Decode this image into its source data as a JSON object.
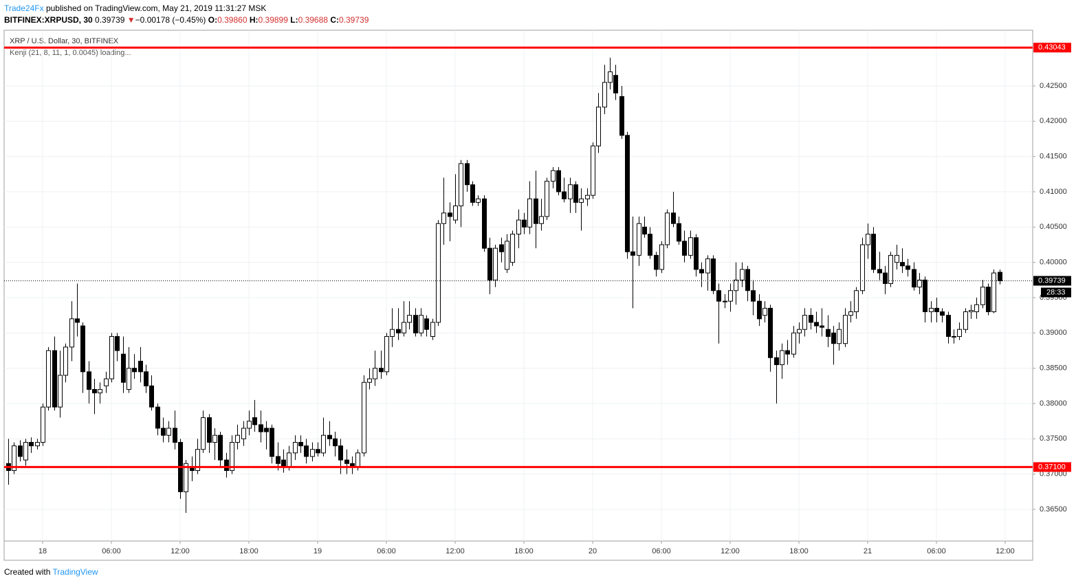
{
  "header": {
    "author": "Trade24Fx",
    "published": "published on TradingView.com, May 21, 2019 11:31:27 MSK",
    "symbol": "BITFINEX:XRPUSD, 30",
    "last": "0.39739",
    "arrow": "▼",
    "change": "−0.00178 (−0.45%)",
    "o_label": "O:",
    "o": "0.39860",
    "h_label": "H:",
    "h": "0.39899",
    "l_label": "L:",
    "l": "0.39688",
    "c_label": "C:",
    "c": "0.39739"
  },
  "footer": {
    "created": "Created with",
    "brand": "TradingView"
  },
  "chart_data": {
    "type": "candlestick",
    "title": "XRP / U.S. Dollar, 30, BITFINEX",
    "subtitle": "Kenji (21, 8, 11, 1, 0.0045) loading...",
    "up_color": "#ffffff",
    "down_color": "#000000",
    "grid": true,
    "ylim": [
      0.36052,
      0.43289
    ],
    "yticks": [
      {
        "value": 0.365,
        "label": "0.36500"
      },
      {
        "value": 0.37,
        "label": "0.37000"
      },
      {
        "value": 0.375,
        "label": "0.37500"
      },
      {
        "value": 0.38,
        "label": "0.38000"
      },
      {
        "value": 0.385,
        "label": "0.38500"
      },
      {
        "value": 0.39,
        "label": "0.39000"
      },
      {
        "value": 0.395,
        "label": "0.39500"
      },
      {
        "value": 0.4,
        "label": "0.40000"
      },
      {
        "value": 0.405,
        "label": "0.40500"
      },
      {
        "value": 0.41,
        "label": "0.41000"
      },
      {
        "value": 0.415,
        "label": "0.41500"
      },
      {
        "value": 0.42,
        "label": "0.42000"
      },
      {
        "value": 0.425,
        "label": "0.42500"
      }
    ],
    "xlim": [
      -0.72,
      178.8
    ],
    "xticks": [
      {
        "value": 6,
        "label": "18"
      },
      {
        "value": 18,
        "label": "06:00"
      },
      {
        "value": 30,
        "label": "12:00"
      },
      {
        "value": 42,
        "label": "18:00"
      },
      {
        "value": 54,
        "label": "19"
      },
      {
        "value": 66,
        "label": "06:00"
      },
      {
        "value": 78,
        "label": "12:00"
      },
      {
        "value": 90,
        "label": "18:00"
      },
      {
        "value": 102,
        "label": "20"
      },
      {
        "value": 114,
        "label": "06:00"
      },
      {
        "value": 126,
        "label": "12:00"
      },
      {
        "value": 138,
        "label": "18:00"
      },
      {
        "value": 150,
        "label": "21"
      },
      {
        "value": 162,
        "label": "06:00"
      },
      {
        "value": 174,
        "label": "12:00"
      }
    ],
    "levels": [
      {
        "value": 0.43043,
        "label": "0.43043",
        "color": "#ff0000"
      },
      {
        "value": 0.371,
        "label": "0.37100",
        "color": "#ff0000"
      }
    ],
    "last_price": {
      "value": 0.39739,
      "label": "0.39739",
      "countdown": "28:33"
    },
    "ohlc": [
      [
        0.3715,
        0.375,
        0.3685,
        0.3705
      ],
      [
        0.3705,
        0.3745,
        0.37,
        0.374
      ],
      [
        0.374,
        0.3748,
        0.3718,
        0.3725
      ],
      [
        0.372,
        0.375,
        0.3712,
        0.3745
      ],
      [
        0.3745,
        0.3752,
        0.373,
        0.374
      ],
      [
        0.374,
        0.375,
        0.3735,
        0.3745
      ],
      [
        0.3745,
        0.38,
        0.374,
        0.3795
      ],
      [
        0.3795,
        0.388,
        0.379,
        0.3875
      ],
      [
        0.3875,
        0.3895,
        0.379,
        0.3795
      ],
      [
        0.3795,
        0.3875,
        0.378,
        0.384
      ],
      [
        0.384,
        0.3885,
        0.383,
        0.388
      ],
      [
        0.388,
        0.3945,
        0.386,
        0.392
      ],
      [
        0.392,
        0.397,
        0.3895,
        0.3915
      ],
      [
        0.391,
        0.3915,
        0.3815,
        0.3845
      ],
      [
        0.3845,
        0.386,
        0.38,
        0.382
      ],
      [
        0.382,
        0.3835,
        0.3785,
        0.3815
      ],
      [
        0.3815,
        0.383,
        0.38,
        0.382
      ],
      [
        0.3825,
        0.3845,
        0.3815,
        0.3835
      ],
      [
        0.3835,
        0.39,
        0.383,
        0.3895
      ],
      [
        0.3895,
        0.39,
        0.386,
        0.3875
      ],
      [
        0.387,
        0.3895,
        0.3815,
        0.383
      ],
      [
        0.382,
        0.388,
        0.3815,
        0.385
      ],
      [
        0.385,
        0.387,
        0.3835,
        0.3845
      ],
      [
        0.386,
        0.388,
        0.383,
        0.3845
      ],
      [
        0.3845,
        0.3855,
        0.3815,
        0.3825
      ],
      [
        0.3825,
        0.384,
        0.379,
        0.3795
      ],
      [
        0.3795,
        0.38,
        0.3755,
        0.3765
      ],
      [
        0.3765,
        0.378,
        0.3745,
        0.3755
      ],
      [
        0.3755,
        0.3775,
        0.3745,
        0.3765
      ],
      [
        0.3765,
        0.379,
        0.3735,
        0.3745
      ],
      [
        0.3745,
        0.375,
        0.3665,
        0.3675
      ],
      [
        0.3675,
        0.372,
        0.3645,
        0.3715
      ],
      [
        0.371,
        0.3725,
        0.369,
        0.3705
      ],
      [
        0.3705,
        0.375,
        0.37,
        0.3735
      ],
      [
        0.3735,
        0.379,
        0.373,
        0.378
      ],
      [
        0.378,
        0.3785,
        0.373,
        0.3745
      ],
      [
        0.3745,
        0.3765,
        0.372,
        0.3755
      ],
      [
        0.3755,
        0.376,
        0.371,
        0.372
      ],
      [
        0.372,
        0.373,
        0.3695,
        0.3705
      ],
      [
        0.3705,
        0.3755,
        0.37,
        0.3745
      ],
      [
        0.3745,
        0.377,
        0.3735,
        0.3755
      ],
      [
        0.375,
        0.3775,
        0.374,
        0.3765
      ],
      [
        0.3765,
        0.379,
        0.3755,
        0.3775
      ],
      [
        0.378,
        0.3805,
        0.376,
        0.377
      ],
      [
        0.377,
        0.379,
        0.3745,
        0.376
      ],
      [
        0.3765,
        0.3775,
        0.3735,
        0.376
      ],
      [
        0.3765,
        0.377,
        0.3715,
        0.3725
      ],
      [
        0.3725,
        0.3745,
        0.3705,
        0.3715
      ],
      [
        0.372,
        0.3735,
        0.3702,
        0.371
      ],
      [
        0.371,
        0.374,
        0.3705,
        0.373
      ],
      [
        0.373,
        0.3755,
        0.372,
        0.3745
      ],
      [
        0.3745,
        0.3755,
        0.373,
        0.374
      ],
      [
        0.374,
        0.375,
        0.3715,
        0.3725
      ],
      [
        0.3725,
        0.3745,
        0.3718,
        0.3735
      ],
      [
        0.3735,
        0.3745,
        0.3725,
        0.373
      ],
      [
        0.373,
        0.378,
        0.3725,
        0.3755
      ],
      [
        0.3755,
        0.3775,
        0.374,
        0.375
      ],
      [
        0.375,
        0.376,
        0.3725,
        0.374
      ],
      [
        0.374,
        0.375,
        0.37,
        0.372
      ],
      [
        0.372,
        0.3735,
        0.37,
        0.3715
      ],
      [
        0.3715,
        0.3725,
        0.37,
        0.371
      ],
      [
        0.371,
        0.3735,
        0.3705,
        0.373
      ],
      [
        0.373,
        0.384,
        0.3725,
        0.383
      ],
      [
        0.383,
        0.385,
        0.382,
        0.3835
      ],
      [
        0.3835,
        0.3875,
        0.3825,
        0.385
      ],
      [
        0.385,
        0.3875,
        0.3835,
        0.3845
      ],
      [
        0.3845,
        0.39,
        0.384,
        0.3895
      ],
      [
        0.3895,
        0.3935,
        0.388,
        0.3905
      ],
      [
        0.3905,
        0.3935,
        0.389,
        0.39
      ],
      [
        0.39,
        0.3945,
        0.3895,
        0.3915
      ],
      [
        0.3915,
        0.3945,
        0.3905,
        0.3925
      ],
      [
        0.3925,
        0.3935,
        0.3895,
        0.39
      ],
      [
        0.39,
        0.3935,
        0.3895,
        0.3925
      ],
      [
        0.392,
        0.3925,
        0.3895,
        0.3905
      ],
      [
        0.3895,
        0.392,
        0.389,
        0.3915
      ],
      [
        0.3915,
        0.406,
        0.391,
        0.4055
      ],
      [
        0.4055,
        0.412,
        0.4025,
        0.407
      ],
      [
        0.407,
        0.4085,
        0.403,
        0.4065
      ],
      [
        0.406,
        0.4125,
        0.4055,
        0.408
      ],
      [
        0.408,
        0.4145,
        0.405,
        0.414
      ],
      [
        0.414,
        0.4145,
        0.41,
        0.411
      ],
      [
        0.411,
        0.4115,
        0.408,
        0.4085
      ],
      [
        0.4085,
        0.4095,
        0.408,
        0.409
      ],
      [
        0.409,
        0.4095,
        0.4015,
        0.402
      ],
      [
        0.402,
        0.4035,
        0.3955,
        0.3975
      ],
      [
        0.3975,
        0.4025,
        0.3965,
        0.402
      ],
      [
        0.4025,
        0.4035,
        0.4,
        0.4015
      ],
      [
        0.399,
        0.404,
        0.3985,
        0.403
      ],
      [
        0.4,
        0.4045,
        0.3995,
        0.404
      ],
      [
        0.404,
        0.4075,
        0.402,
        0.406
      ],
      [
        0.406,
        0.407,
        0.404,
        0.405
      ],
      [
        0.405,
        0.4115,
        0.404,
        0.409
      ],
      [
        0.409,
        0.413,
        0.402,
        0.4055
      ],
      [
        0.4055,
        0.409,
        0.4045,
        0.4065
      ],
      [
        0.4065,
        0.412,
        0.406,
        0.4115
      ],
      [
        0.4115,
        0.4135,
        0.4105,
        0.413
      ],
      [
        0.413,
        0.4135,
        0.4095,
        0.41
      ],
      [
        0.41,
        0.412,
        0.4085,
        0.409
      ],
      [
        0.409,
        0.412,
        0.407,
        0.411
      ],
      [
        0.411,
        0.4115,
        0.407,
        0.4085
      ],
      [
        0.4085,
        0.4105,
        0.4045,
        0.409
      ],
      [
        0.409,
        0.4105,
        0.408,
        0.4095
      ],
      [
        0.4095,
        0.417,
        0.409,
        0.4165
      ],
      [
        0.4165,
        0.424,
        0.4155,
        0.422
      ],
      [
        0.422,
        0.428,
        0.421,
        0.4255
      ],
      [
        0.4255,
        0.429,
        0.4245,
        0.427
      ],
      [
        0.4265,
        0.428,
        0.423,
        0.424
      ],
      [
        0.4235,
        0.425,
        0.4175,
        0.418
      ],
      [
        0.418,
        0.4185,
        0.4005,
        0.4015
      ],
      [
        0.4015,
        0.4065,
        0.3935,
        0.401
      ],
      [
        0.401,
        0.4065,
        0.3995,
        0.4055
      ],
      [
        0.405,
        0.4065,
        0.4035,
        0.404
      ],
      [
        0.404,
        0.405,
        0.4005,
        0.401
      ],
      [
        0.401,
        0.4015,
        0.398,
        0.399
      ],
      [
        0.399,
        0.403,
        0.3985,
        0.4025
      ],
      [
        0.4025,
        0.4075,
        0.402,
        0.407
      ],
      [
        0.407,
        0.41,
        0.405,
        0.4055
      ],
      [
        0.4055,
        0.4065,
        0.4025,
        0.403
      ],
      [
        0.403,
        0.4045,
        0.4,
        0.401
      ],
      [
        0.401,
        0.4045,
        0.4005,
        0.4035
      ],
      [
        0.4035,
        0.404,
        0.398,
        0.399
      ],
      [
        0.399,
        0.4,
        0.3965,
        0.3985
      ],
      [
        0.3985,
        0.401,
        0.396,
        0.4005
      ],
      [
        0.4005,
        0.401,
        0.3955,
        0.396
      ],
      [
        0.396,
        0.397,
        0.3885,
        0.3945
      ],
      [
        0.3945,
        0.3955,
        0.3935,
        0.3945
      ],
      [
        0.3945,
        0.397,
        0.393,
        0.396
      ],
      [
        0.396,
        0.4,
        0.394,
        0.3975
      ],
      [
        0.3975,
        0.4,
        0.3965,
        0.399
      ],
      [
        0.399,
        0.3995,
        0.3945,
        0.396
      ],
      [
        0.396,
        0.3975,
        0.3925,
        0.3945
      ],
      [
        0.3945,
        0.3955,
        0.391,
        0.392
      ],
      [
        0.3925,
        0.3945,
        0.3915,
        0.3935
      ],
      [
        0.3935,
        0.394,
        0.3845,
        0.3865
      ],
      [
        0.3865,
        0.3875,
        0.38,
        0.3855
      ],
      [
        0.3855,
        0.3885,
        0.3835,
        0.3875
      ],
      [
        0.3875,
        0.389,
        0.3855,
        0.387
      ],
      [
        0.387,
        0.391,
        0.3865,
        0.39
      ],
      [
        0.39,
        0.3915,
        0.3885,
        0.3905
      ],
      [
        0.3905,
        0.3935,
        0.3895,
        0.3925
      ],
      [
        0.3925,
        0.3935,
        0.3905,
        0.3915
      ],
      [
        0.3915,
        0.393,
        0.39,
        0.391
      ],
      [
        0.391,
        0.3935,
        0.3895,
        0.3908
      ],
      [
        0.3905,
        0.3925,
        0.388,
        0.3895
      ],
      [
        0.39,
        0.391,
        0.3855,
        0.3885
      ],
      [
        0.3885,
        0.3915,
        0.3875,
        0.3905
      ],
      [
        0.3885,
        0.3935,
        0.388,
        0.3925
      ],
      [
        0.3925,
        0.3945,
        0.3915,
        0.393
      ],
      [
        0.393,
        0.3965,
        0.392,
        0.396
      ],
      [
        0.396,
        0.4035,
        0.3955,
        0.4025
      ],
      [
        0.4025,
        0.4055,
        0.4005,
        0.404
      ],
      [
        0.404,
        0.405,
        0.3985,
        0.399
      ],
      [
        0.399,
        0.4015,
        0.3975,
        0.3985
      ],
      [
        0.3985,
        0.3995,
        0.3955,
        0.397
      ],
      [
        0.397,
        0.4015,
        0.3965,
        0.401
      ],
      [
        0.4,
        0.4025,
        0.399,
        0.401
      ],
      [
        0.4,
        0.402,
        0.3985,
        0.3995
      ],
      [
        0.3995,
        0.4005,
        0.398,
        0.399
      ],
      [
        0.399,
        0.4,
        0.396,
        0.3965
      ],
      [
        0.3965,
        0.3985,
        0.3955,
        0.3975
      ],
      [
        0.3975,
        0.398,
        0.3915,
        0.393
      ],
      [
        0.393,
        0.3945,
        0.3915,
        0.3935
      ],
      [
        0.3935,
        0.395,
        0.3915,
        0.393
      ],
      [
        0.393,
        0.3935,
        0.3915,
        0.3925
      ],
      [
        0.3925,
        0.393,
        0.3885,
        0.3895
      ],
      [
        0.3895,
        0.3905,
        0.3885,
        0.3895
      ],
      [
        0.3895,
        0.3915,
        0.389,
        0.3905
      ],
      [
        0.3905,
        0.3935,
        0.39,
        0.393
      ],
      [
        0.393,
        0.394,
        0.392,
        0.3932
      ],
      [
        0.393,
        0.395,
        0.392,
        0.394
      ],
      [
        0.394,
        0.3975,
        0.3935,
        0.3965
      ],
      [
        0.3965,
        0.397,
        0.3925,
        0.393
      ],
      [
        0.393,
        0.399,
        0.3928,
        0.3985
      ],
      [
        0.3986,
        0.39899,
        0.39688,
        0.39739
      ]
    ]
  }
}
